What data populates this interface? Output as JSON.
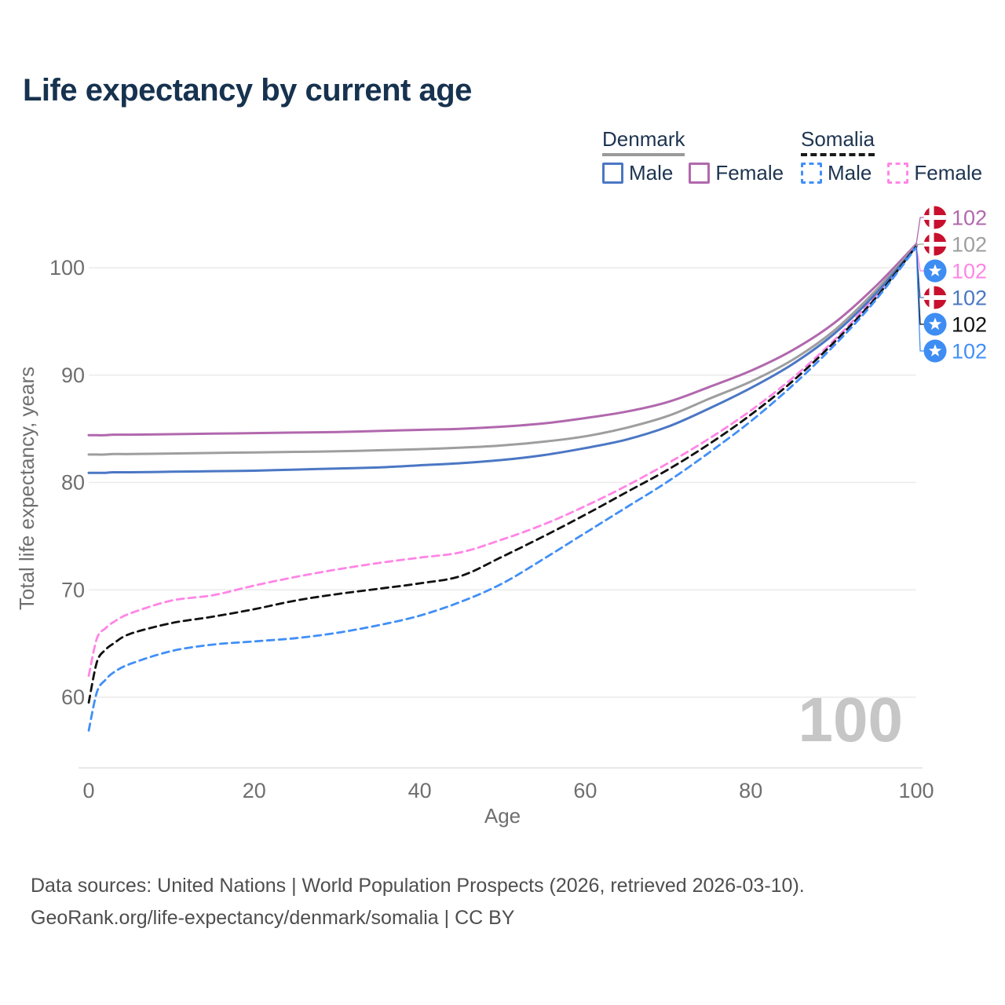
{
  "title": "Life expectancy by current age",
  "legend": {
    "groups": [
      {
        "name": "Denmark",
        "line_style": "solid",
        "underline_color": "#9a9a9a",
        "items": [
          {
            "label": "Male",
            "color": "#4b77c4"
          },
          {
            "label": "Female",
            "color": "#b168ad"
          }
        ]
      },
      {
        "name": "Somalia",
        "line_style": "dashed",
        "underline_color": "#1a1a1a",
        "items": [
          {
            "label": "Male",
            "color": "#418ff7"
          },
          {
            "label": "Female",
            "color": "#ff85e6"
          }
        ]
      }
    ]
  },
  "chart_data": {
    "type": "line",
    "title": "Life expectancy by current age",
    "xlabel": "Age",
    "ylabel": "Total life expectancy, years",
    "xlim": [
      0,
      100
    ],
    "ylim": [
      55,
      104
    ],
    "xticks": [
      0,
      20,
      40,
      60,
      80,
      100
    ],
    "yticks": [
      60,
      70,
      80,
      90,
      100
    ],
    "grid": true,
    "legend_position": "top-right",
    "watermark": "100",
    "x": [
      0,
      1,
      2,
      3,
      5,
      10,
      15,
      20,
      25,
      30,
      35,
      40,
      45,
      50,
      55,
      60,
      65,
      70,
      75,
      80,
      85,
      90,
      95,
      100
    ],
    "series": [
      {
        "name": "Denmark Female",
        "country": "Denmark",
        "color": "#b168ad",
        "dash": false,
        "end_label": "102",
        "values": [
          84.4,
          84.4,
          84.4,
          84.45,
          84.45,
          84.5,
          84.55,
          84.6,
          84.65,
          84.7,
          84.8,
          84.9,
          85.0,
          85.2,
          85.5,
          86.0,
          86.6,
          87.5,
          88.9,
          90.4,
          92.3,
          94.8,
          98.2,
          102.2
        ]
      },
      {
        "name": "Denmark",
        "country": "Denmark",
        "color": "#9e9e9e",
        "dash": false,
        "end_label": "102",
        "values": [
          82.6,
          82.6,
          82.6,
          82.65,
          82.65,
          82.7,
          82.75,
          82.8,
          82.85,
          82.9,
          83.0,
          83.1,
          83.25,
          83.45,
          83.8,
          84.3,
          85.1,
          86.2,
          87.8,
          89.4,
          91.4,
          94.1,
          97.8,
          102.1
        ]
      },
      {
        "name": "Somalia Female",
        "country": "Somalia",
        "color": "#ff85e6",
        "dash": true,
        "end_label": "102",
        "values": [
          62.0,
          65.5,
          66.4,
          67.0,
          67.8,
          69.0,
          69.5,
          70.4,
          71.2,
          71.9,
          72.5,
          73.0,
          73.5,
          74.7,
          76.1,
          77.8,
          79.7,
          81.8,
          84.1,
          86.7,
          89.7,
          93.2,
          97.3,
          102.1
        ]
      },
      {
        "name": "Denmark Male",
        "country": "Denmark",
        "color": "#4b77c4",
        "dash": false,
        "end_label": "102",
        "values": [
          80.9,
          80.9,
          80.9,
          80.95,
          80.95,
          81.0,
          81.05,
          81.1,
          81.2,
          81.3,
          81.4,
          81.6,
          81.8,
          82.1,
          82.55,
          83.2,
          84.0,
          85.2,
          86.9,
          88.8,
          91.0,
          93.8,
          97.5,
          102.0
        ]
      },
      {
        "name": "Somalia",
        "country": "Somalia",
        "color": "#111111",
        "dash": true,
        "end_label": "102",
        "values": [
          59.5,
          63.3,
          64.4,
          65.0,
          65.9,
          66.9,
          67.5,
          68.2,
          69.0,
          69.6,
          70.1,
          70.6,
          71.3,
          73.1,
          75.0,
          77.0,
          79.1,
          81.2,
          83.6,
          86.3,
          89.4,
          93.0,
          97.1,
          102.0
        ]
      },
      {
        "name": "Somalia Male",
        "country": "Somalia",
        "color": "#418ff7",
        "dash": true,
        "end_label": "102",
        "values": [
          56.9,
          60.5,
          61.6,
          62.3,
          63.1,
          64.3,
          64.9,
          65.2,
          65.5,
          66.0,
          66.7,
          67.6,
          68.9,
          70.6,
          72.9,
          75.3,
          77.7,
          80.1,
          82.8,
          85.7,
          89.0,
          92.7,
          96.9,
          101.9
        ]
      }
    ],
    "flags": {
      "denmark": {
        "bg": "#c8102e",
        "cross": "#ffffff"
      },
      "somalia": {
        "bg": "#3d8df3",
        "star": "#ffffff"
      }
    }
  },
  "colors": {
    "title_text": "#16324f",
    "axis_text": "#6f6f6f",
    "gridline": "#ebebeb",
    "axis_line": "#d9d9d9",
    "watermark": "#c6c6c6",
    "footer_text": "#4e4e4e"
  },
  "footer": {
    "line1": "Data sources: United Nations | World Population Prospects (2026, retrieved 2026-03-10).",
    "line2": "GeoRank.org/life-expectancy/denmark/somalia | CC BY"
  }
}
